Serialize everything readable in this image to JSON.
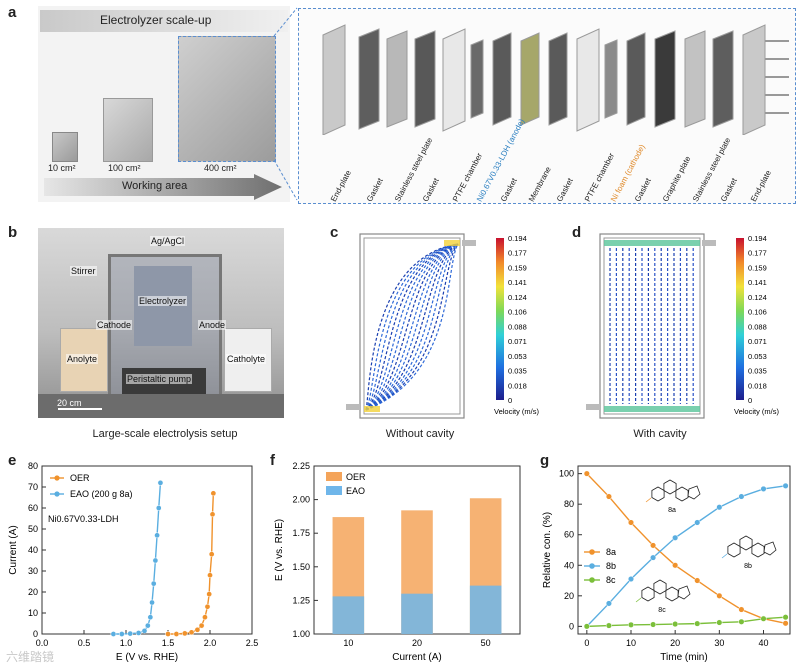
{
  "panel_a": {
    "letter": "a",
    "scaleup_title": "Electrolyzer scale-up",
    "sizes": [
      "10 cm²",
      "100 cm²",
      "400 cm²"
    ],
    "arrow_label": "Working area",
    "components": [
      {
        "label": "End-plate",
        "color": "#222222"
      },
      {
        "label": "Gasket",
        "color": "#222222"
      },
      {
        "label": "Stainless steel plate",
        "color": "#222222"
      },
      {
        "label": "Gasket",
        "color": "#222222"
      },
      {
        "label": "PTFE chamber",
        "color": "#222222"
      },
      {
        "label": "Ni0.67V0.33-LDH (anode)",
        "color": "#2a7fc1"
      },
      {
        "label": "Gasket",
        "color": "#222222"
      },
      {
        "label": "Membrane",
        "color": "#222222"
      },
      {
        "label": "Gasket",
        "color": "#222222"
      },
      {
        "label": "PTFE chamber",
        "color": "#222222"
      },
      {
        "label": "Ni foam (cathode)",
        "color": "#e08a2a"
      },
      {
        "label": "Gasket",
        "color": "#222222"
      },
      {
        "label": "Graphite plate",
        "color": "#222222"
      },
      {
        "label": "Stainless steel plate",
        "color": "#222222"
      },
      {
        "label": "Gasket",
        "color": "#222222"
      },
      {
        "label": "End-plate",
        "color": "#222222"
      }
    ]
  },
  "panel_b": {
    "letter": "b",
    "labels": [
      "Ag/AgCl",
      "Stirrer",
      "Electrolyzer",
      "Cathode",
      "Anode",
      "Anolyte",
      "Catholyte",
      "Peristaltic pump",
      "20 cm"
    ],
    "caption": "Large-scale electrolysis setup"
  },
  "panel_c": {
    "letter": "c",
    "caption": "Without cavity",
    "colorbar_ticks": [
      "0.194",
      "0.177",
      "0.159",
      "0.141",
      "0.124",
      "0.106",
      "0.088",
      "0.071",
      "0.053",
      "0.035",
      "0.018",
      "0"
    ],
    "colorbar_label": "Velocity (m/s)"
  },
  "panel_d": {
    "letter": "d",
    "caption": "With cavity",
    "colorbar_ticks": [
      "0.194",
      "0.177",
      "0.159",
      "0.141",
      "0.124",
      "0.106",
      "0.088",
      "0.071",
      "0.053",
      "0.035",
      "0.018",
      "0"
    ],
    "colorbar_label": "Velocity (m/s)"
  },
  "chart_data": [
    {
      "panel": "e",
      "type": "line",
      "xlabel": "E (V vs. RHE)",
      "ylabel": "Current (A)",
      "xlim": [
        0.0,
        2.5
      ],
      "ylim": [
        0,
        80
      ],
      "xticks": [
        "0.0",
        "0.5",
        "1.0",
        "1.5",
        "2.0",
        "2.5"
      ],
      "yticks": [
        "0",
        "10",
        "20",
        "30",
        "40",
        "50",
        "60",
        "70",
        "80"
      ],
      "annotation": "Ni0.67V0.33-LDH",
      "series": [
        {
          "name": "OER",
          "color": "#f0922c",
          "x": [
            1.5,
            1.6,
            1.7,
            1.78,
            1.85,
            1.9,
            1.94,
            1.97,
            1.99,
            2.0,
            2.02,
            2.03,
            2.04
          ],
          "y": [
            0,
            0,
            0.3,
            0.8,
            2,
            4,
            8,
            13,
            19,
            28,
            38,
            57,
            67
          ]
        },
        {
          "name": "EAO  (200 g 8a)",
          "color": "#5aaee0",
          "x": [
            0.85,
            0.95,
            1.05,
            1.15,
            1.22,
            1.26,
            1.29,
            1.31,
            1.33,
            1.35,
            1.37,
            1.39,
            1.41
          ],
          "y": [
            0,
            0,
            0.2,
            0.5,
            1.5,
            4,
            8,
            15,
            24,
            35,
            47,
            60,
            72
          ]
        }
      ]
    },
    {
      "panel": "f",
      "type": "bar",
      "xlabel": "Current (A)",
      "ylabel": "E (V vs. RHE)",
      "ylim": [
        1.0,
        2.25
      ],
      "yticks": [
        "1.00",
        "1.25",
        "1.50",
        "1.75",
        "2.00",
        "2.25"
      ],
      "categories": [
        "10",
        "20",
        "50"
      ],
      "series": [
        {
          "name": "OER",
          "color": "#f4a45a",
          "values": [
            1.87,
            1.92,
            2.01
          ]
        },
        {
          "name": "EAO",
          "color": "#6fb6ea",
          "values": [
            1.28,
            1.3,
            1.36
          ]
        }
      ]
    },
    {
      "panel": "g",
      "type": "line",
      "xlabel": "Time (min)",
      "ylabel": "Relative con. (%)",
      "xlim": [
        -2,
        46
      ],
      "ylim": [
        -5,
        105
      ],
      "xticks": [
        "0",
        "10",
        "20",
        "30",
        "40"
      ],
      "yticks": [
        "0",
        "20",
        "40",
        "60",
        "80",
        "100"
      ],
      "series": [
        {
          "name": "8a",
          "color": "#f0922c",
          "x": [
            0,
            5,
            10,
            15,
            20,
            25,
            30,
            35,
            40,
            45
          ],
          "y": [
            100,
            85,
            68,
            53,
            40,
            30,
            20,
            11,
            5,
            2
          ]
        },
        {
          "name": "8b",
          "color": "#5aaee0",
          "x": [
            0,
            5,
            10,
            15,
            20,
            25,
            30,
            35,
            40,
            45
          ],
          "y": [
            0,
            15,
            31,
            45,
            58,
            68,
            78,
            85,
            90,
            92
          ]
        },
        {
          "name": "8c",
          "color": "#7bbf3a",
          "x": [
            0,
            5,
            10,
            15,
            20,
            25,
            30,
            35,
            40,
            45
          ],
          "y": [
            0,
            0.5,
            1,
            1.2,
            1.5,
            1.8,
            2.5,
            3,
            5,
            6
          ]
        }
      ],
      "molecule_labels": [
        "8a",
        "8b",
        "8c"
      ]
    }
  ],
  "panel_e_letter": "e",
  "panel_f_letter": "f",
  "panel_g_letter": "g",
  "watermark": "六维踏镜"
}
